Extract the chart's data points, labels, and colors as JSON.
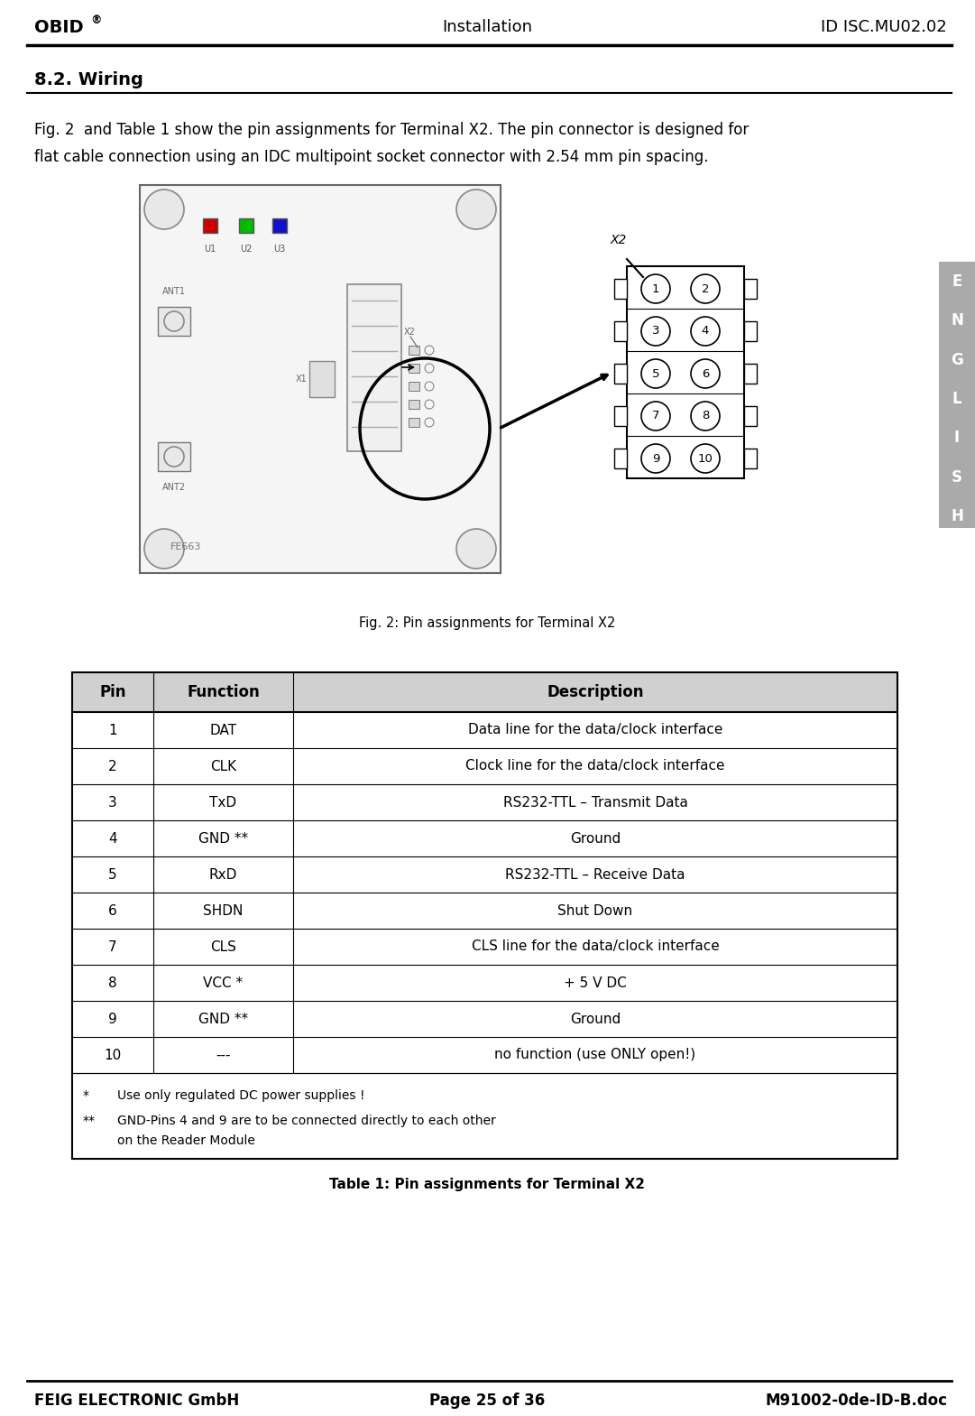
{
  "header_left": "OBID®",
  "header_center": "Installation",
  "header_right": "ID ISC.MU02.02",
  "footer_left": "FEIG ELECTRONIC GmbH",
  "footer_center": "Page 25 of 36",
  "footer_right": "M91002-0de-ID-B.doc",
  "section_title": "8.2. Wiring",
  "intro_line1": "Fig. 2  and Table 1 show the pin assignments for Terminal X2. The pin connector is designed for",
  "intro_line2": "flat cable connection using an IDC multipoint socket connector with 2.54 mm pin spacing.",
  "fig_caption": "Fig. 2: Pin assignments for Terminal X2",
  "table_caption": "Table 1: Pin assignments for Terminal X2",
  "table_header": [
    "Pin",
    "Function",
    "Description"
  ],
  "table_rows": [
    [
      "1",
      "DAT",
      "Data line for the data/clock interface"
    ],
    [
      "2",
      "CLK",
      "Clock line for the data/clock interface"
    ],
    [
      "3",
      "TxD",
      "RS232-TTL – Transmit Data"
    ],
    [
      "4",
      "GND **",
      "Ground"
    ],
    [
      "5",
      "RxD",
      "RS232-TTL – Receive Data"
    ],
    [
      "6",
      "SHDN",
      "Shut Down"
    ],
    [
      "7",
      "CLS",
      "CLS line for the data/clock interface"
    ],
    [
      "8",
      "VCC *",
      "+ 5 V DC"
    ],
    [
      "9",
      "GND **",
      "Ground"
    ],
    [
      "10",
      "---",
      "no function (use ONLY open!)"
    ]
  ],
  "fn1_star": "*",
  "fn1_text": "Use only regulated DC power supplies !",
  "fn2_star": "**",
  "fn2_text": "GND-Pins 4 and 9 are to be connected directly to each other",
  "fn2_cont": "on the Reader Module",
  "led_colors": [
    "#cc0000",
    "#00bb00",
    "#1111cc"
  ],
  "led_labels": [
    "U1",
    "U2",
    "U3"
  ],
  "pcb_label": "FE663",
  "bg_color": "#ffffff",
  "header_gray": "#cccccc",
  "tab_gray": "#aaaaaa",
  "pcb_bg": "#f5f5f5",
  "pcb_edge": "#666666"
}
